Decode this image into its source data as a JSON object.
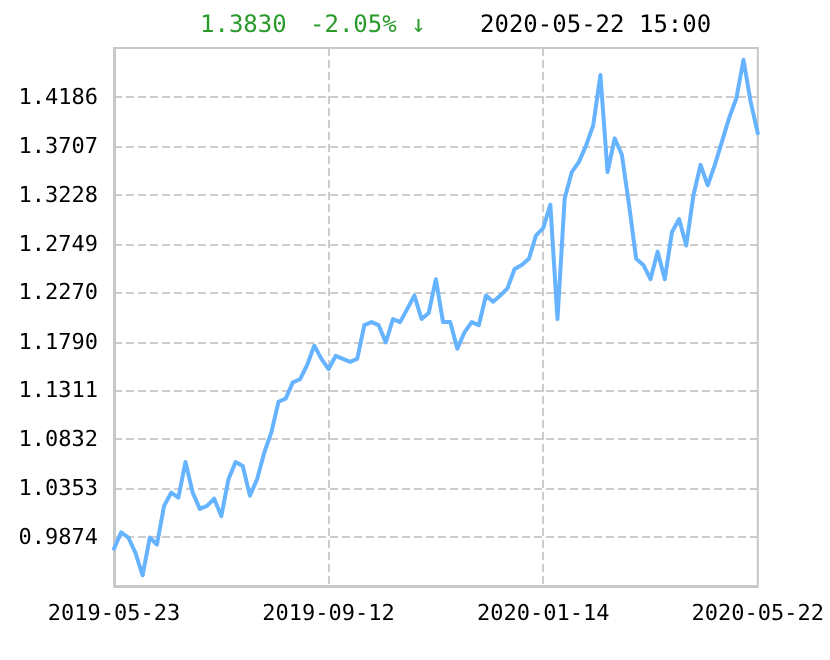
{
  "chart_data": {
    "type": "line",
    "annotations": [
      "1.3830",
      "-2.05% ↓",
      "2020-05-22 15:00"
    ],
    "categories": [
      "2019-05-23",
      null,
      null,
      null,
      null,
      null,
      null,
      null,
      null,
      null,
      null,
      null,
      null,
      null,
      null,
      null,
      null,
      null,
      null,
      null,
      null,
      null,
      null,
      null,
      null,
      null,
      null,
      null,
      null,
      null,
      "2019-09-12",
      null,
      null,
      null,
      null,
      null,
      null,
      null,
      null,
      null,
      null,
      null,
      null,
      null,
      null,
      null,
      null,
      null,
      null,
      null,
      null,
      null,
      null,
      null,
      null,
      null,
      null,
      null,
      null,
      null,
      "2020-01-14",
      null,
      null,
      null,
      null,
      null,
      null,
      null,
      null,
      null,
      null,
      null,
      null,
      null,
      null,
      null,
      null,
      null,
      null,
      null,
      null,
      null,
      null,
      null,
      null,
      null,
      null,
      null,
      null,
      null,
      "2020-05-22"
    ],
    "series": [
      {
        "color": "#66b3ff",
        "values": [
          0.976,
          0.992,
          0.987,
          0.972,
          0.95,
          0.987,
          0.98,
          1.018,
          1.031,
          1.026,
          1.061,
          1.031,
          1.015,
          1.018,
          1.025,
          1.008,
          1.044,
          1.061,
          1.057,
          1.028,
          1.044,
          1.07,
          1.09,
          1.12,
          1.123,
          1.139,
          1.142,
          1.156,
          1.175,
          1.162,
          1.152,
          1.165,
          1.162,
          1.159,
          1.162,
          1.195,
          1.198,
          1.195,
          1.178,
          1.201,
          1.198,
          1.211,
          1.224,
          1.201,
          1.207,
          1.24,
          1.198,
          1.198,
          1.172,
          1.188,
          1.198,
          1.195,
          1.224,
          1.218,
          1.224,
          1.231,
          1.25,
          1.254,
          1.26,
          1.283,
          1.29,
          1.313,
          1.201,
          1.319,
          1.345,
          1.355,
          1.371,
          1.391,
          1.44,
          1.345,
          1.378,
          1.362,
          1.313,
          1.26,
          1.254,
          1.24,
          1.267,
          1.24,
          1.286,
          1.299,
          1.273,
          1.322,
          1.352,
          1.332,
          1.352,
          1.375,
          1.398,
          1.417,
          1.455,
          1.414,
          1.383
        ]
      }
    ],
    "ylim": [
      0.9395,
      1.4665
    ],
    "yticks": [
      0.9874,
      1.0353,
      1.0832,
      1.1311,
      {
        "value": 1.179,
        "label": "1.1790"
      },
      {
        "value": 1.227,
        "label": "1.2270"
      },
      1.2749,
      1.3228,
      1.3707,
      1.4186
    ],
    "grid": true,
    "marker": "none",
    "line_style": "solid"
  }
}
